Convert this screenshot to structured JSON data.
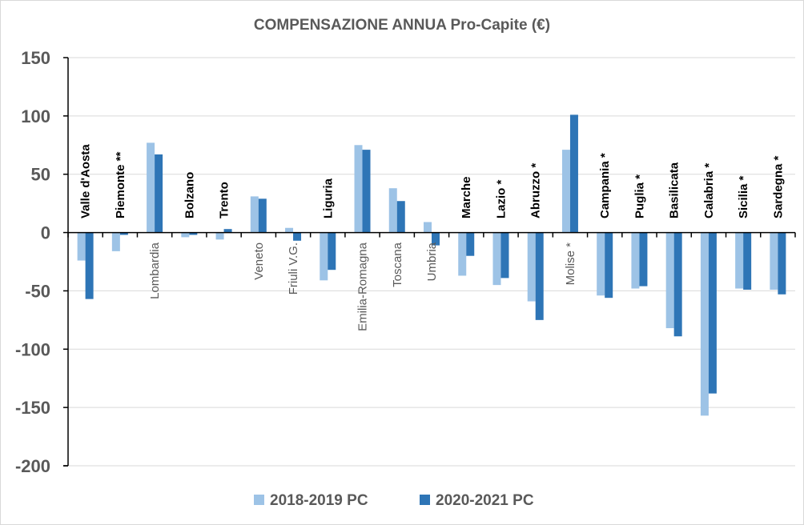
{
  "chart_data": {
    "type": "bar",
    "title": "COMPENSAZIONE ANNUA Pro-Capite (€)",
    "xlabel": "",
    "ylabel": "",
    "ylim": [
      -200,
      150
    ],
    "yticks": [
      150,
      100,
      50,
      0,
      -50,
      -100,
      -150,
      -200
    ],
    "grid": true,
    "legend_position": "bottom",
    "categories": [
      "Valle d'Aosta",
      "Piemonte **",
      "Lombardia",
      "Bolzano",
      "Trento",
      "Veneto",
      "Friuli V.G.",
      "Liguria",
      "Emilia-Romagna",
      "Toscana",
      "Umbria",
      "Marche",
      "Lazio *",
      "Abruzzo *",
      "Molise *",
      "Campania *",
      "Puglia *",
      "Basilicata",
      "Calabria *",
      "Sicilia *",
      "Sardegna *"
    ],
    "label_placement": [
      "top",
      "top",
      "bottom",
      "top",
      "top",
      "bottom",
      "bottom",
      "top",
      "bottom",
      "bottom",
      "bottom",
      "top",
      "top",
      "top",
      "bottom",
      "top",
      "top",
      "top",
      "top",
      "top",
      "top"
    ],
    "series": [
      {
        "name": "2018-2019 PC",
        "color": "#9dc3e6",
        "values": [
          -24,
          -16,
          77,
          -4,
          -6,
          31,
          4,
          -41,
          75,
          38,
          9,
          -37,
          -45,
          -59,
          71,
          -54,
          -48,
          -82,
          -157,
          -48,
          -49
        ]
      },
      {
        "name": "2020-2021 PC",
        "color": "#2e75b6",
        "values": [
          -57,
          -2,
          67,
          -2,
          3,
          29,
          -7,
          -32,
          71,
          27,
          -11,
          -20,
          -39,
          -75,
          101,
          -56,
          -46,
          -89,
          -138,
          -49,
          -53
        ]
      }
    ]
  }
}
